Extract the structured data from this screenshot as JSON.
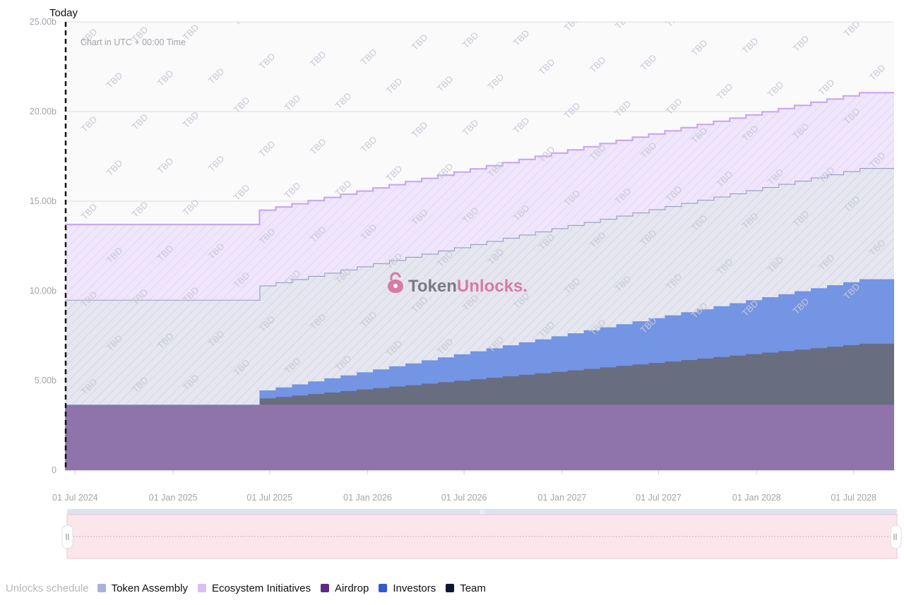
{
  "chart_data": {
    "type": "area",
    "stacked": true,
    "step": true,
    "unit_suffix": "b",
    "note": "Chart in UTC + 00:00 Time",
    "today_label": "Today",
    "watermark": {
      "brand_a": "Token",
      "brand_b": "Unlocks."
    },
    "tbd_label": "TBD",
    "y_range": [
      0,
      25
    ],
    "y_ticks": [
      {
        "value": 0,
        "label": "0"
      },
      {
        "value": 5,
        "label": "5.00b"
      },
      {
        "value": 10,
        "label": "10.00b"
      },
      {
        "value": 15,
        "label": "15.00b"
      },
      {
        "value": 20,
        "label": "20.00b"
      },
      {
        "value": 25,
        "label": "25.00b"
      }
    ],
    "x_range": [
      "2024-06-12",
      "2028-09-15"
    ],
    "x_ticks": [
      {
        "date": "2024-07-01",
        "label": "01 Jul 2024"
      },
      {
        "date": "2025-01-01",
        "label": "01 Jan 2025"
      },
      {
        "date": "2025-07-01",
        "label": "01 Jul 2025"
      },
      {
        "date": "2026-01-01",
        "label": "01 Jan 2026"
      },
      {
        "date": "2026-07-01",
        "label": "01 Jul 2026"
      },
      {
        "date": "2027-01-01",
        "label": "01 Jan 2027"
      },
      {
        "date": "2027-07-01",
        "label": "01 Jul 2027"
      },
      {
        "date": "2028-01-01",
        "label": "01 Jan 2028"
      },
      {
        "date": "2028-07-01",
        "label": "01 Jul 2028"
      }
    ],
    "today": "2024-06-12",
    "unlock_start": "2025-06-12",
    "unlock_end": "2028-07-12",
    "monthly_steps": 37,
    "series": [
      {
        "name": "Airdrop",
        "color": "#5b2a86",
        "fill": "#8e74aa",
        "start_total": 3.65,
        "end_total": 3.65,
        "tbd": false
      },
      {
        "name": "Team",
        "color": "#0f1535",
        "fill": "#686d80",
        "start_total": 0.35,
        "end_total": 3.4,
        "tbd": false
      },
      {
        "name": "Investors",
        "color": "#2f59d9",
        "fill": "#7494e4",
        "start_total": 0.45,
        "end_total": 3.6,
        "tbd": false
      },
      {
        "name": "Token Assembly",
        "color": "#a9b2d9",
        "fill": "#e5e6ef",
        "start_total": 5.85,
        "end_total": 6.2,
        "tbd": true
      },
      {
        "name": "Ecosystem Initiatives",
        "color": "#d7c0f7",
        "fill": "#efe6fb",
        "start_total": 4.2,
        "end_total": 4.2,
        "tbd": true
      }
    ],
    "legend": {
      "title": "Unlocks schedule",
      "placement": "bottom-left",
      "items": [
        {
          "label": "Token Assembly",
          "color": "#a9b2d9"
        },
        {
          "label": "Ecosystem Initiatives",
          "color": "#d7c0f7"
        },
        {
          "label": "Airdrop",
          "color": "#5b2a86"
        },
        {
          "label": "Investors",
          "color": "#2f59d9"
        },
        {
          "label": "Team",
          "color": "#0f1535"
        }
      ]
    }
  }
}
